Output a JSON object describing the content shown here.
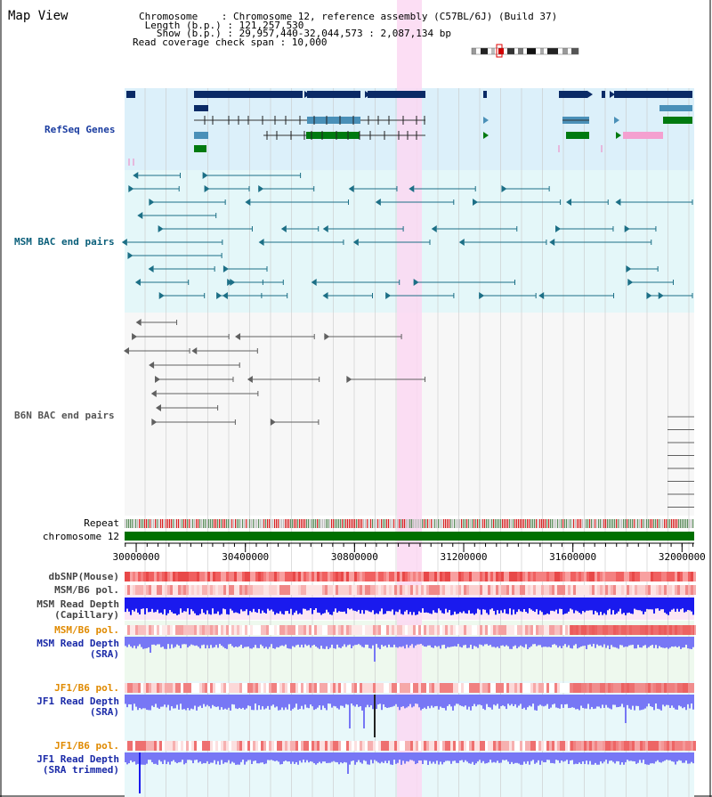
{
  "title": "Map View",
  "header": {
    "chromosome_line": "Chromosome    : Chromosome 12, reference assembly (C57BL/6J) (Build 37)",
    "length_line": " Length (b.p.) : 121,257,530",
    "show_line": "   Show (b.p.) : 29,957,440-32,044,573 : 2,087,134 bp",
    "coverage_line": "Read coverage check span : 10,000"
  },
  "tracks": {
    "refseq": "RefSeq Genes",
    "msm_bac": "MSM BAC end pairs",
    "b6n_bac": "B6N BAC end pairs",
    "repeat": "Repeat",
    "chromosome": "chromosome 12",
    "dbsnp": "dbSNP(Mouse)",
    "msm_pol_1": "MSM/B6 pol.",
    "msm_depth_cap_1": "MSM Read Depth",
    "msm_depth_cap_2": "(Capillary)",
    "msm_pol_2": "MSM/B6 pol.",
    "msm_depth_sra_1": "MSM Read Depth",
    "msm_depth_sra_2": "(SRA)",
    "jf1_pol_1": "JF1/B6 pol.",
    "jf1_depth_sra_1": "JF1 Read Depth",
    "jf1_depth_sra_2": "(SRA)",
    "jf1_pol_2": "JF1/B6 pol.",
    "jf1_depth_trim_1": "JF1 Read Depth",
    "jf1_depth_trim_2": "(SRA trimmed)"
  },
  "axis": {
    "range_bp": [
      29957440,
      32044573
    ],
    "ticks": [
      {
        "value": 30000000,
        "label": "30000000"
      },
      {
        "value": 30400000,
        "label": "30400000"
      },
      {
        "value": 30800000,
        "label": "30800000"
      },
      {
        "value": 31200000,
        "label": "31200000"
      },
      {
        "value": 31600000,
        "label": "31600000"
      },
      {
        "value": 32000000,
        "label": "32000000"
      }
    ]
  },
  "highlight_bp": [
    30860000,
    30950000
  ],
  "colors": {
    "refseq_bg": "#dcf0fa",
    "msm_bg": "#e4f7f9",
    "b6n_bg": "#f7f7f7",
    "highlight": "#fbd8f2",
    "chromosome": "#007000",
    "gene_dark": "#0a2a66",
    "gene_mid": "#4a90b8",
    "gene_green": "#007a10",
    "msm_pair": "#1c6f86",
    "b6n_pair": "#606060",
    "depth_blue": "#1a1aee",
    "depth_light": "#7777f5"
  }
}
